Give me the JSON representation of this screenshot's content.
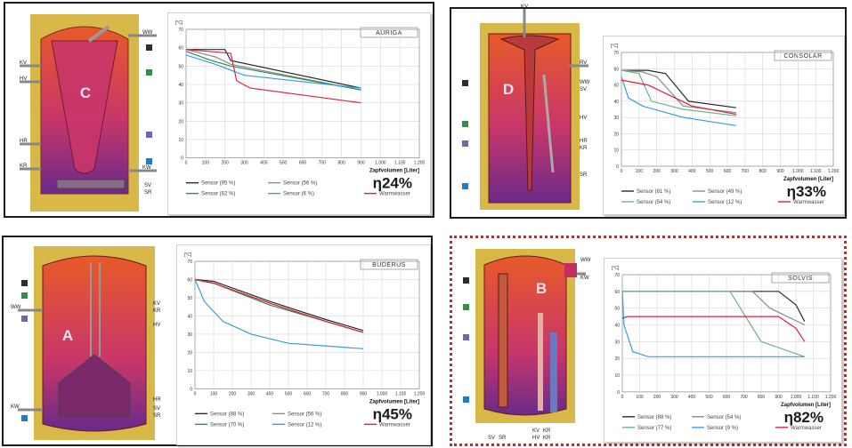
{
  "colors": {
    "dark": "#2a2a2a",
    "gray": "#8c8c8c",
    "green": "#2f8a5a",
    "blue": "#3a9fd6",
    "red": "#e0203a",
    "lightgreen": "#6ab58a"
  },
  "connector_icon_colors": {
    "dark": "#2d2d2d",
    "green": "#3a8a4a",
    "violet": "#6a6aa8",
    "blue": "#2a7ac0"
  },
  "tanks": {
    "c": {
      "letter": "C",
      "left_labels": [
        "KV",
        "HV",
        "HR",
        "KR"
      ],
      "right_labels": [
        "WW",
        "KW",
        "SV",
        "SR"
      ]
    },
    "d": {
      "letter": "D",
      "top_label": "KV",
      "right_labels": [
        "RV",
        "WW",
        "SV",
        "HV",
        "HR",
        "KR",
        "SR"
      ]
    },
    "a": {
      "letter": "A",
      "left_labels": [
        "WW",
        "KW"
      ],
      "right_labels": [
        "KV",
        "KR",
        "HV",
        "HR",
        "SV",
        "SR"
      ]
    },
    "b": {
      "letter": "B",
      "right_labels": [
        "WW",
        "KW"
      ],
      "bottom_labels": [
        "SV",
        "SR",
        "KV",
        "HV",
        "KR",
        "KR"
      ]
    }
  },
  "axes": {
    "unit": "[°C]",
    "xlabel": "Zapfvolumen  [Liter]",
    "y_ticks": [
      "70",
      "60",
      "50",
      "40",
      "30",
      "20",
      "10",
      "0"
    ],
    "x_ticks": [
      "0",
      "100",
      "200",
      "300",
      "400",
      "500",
      "600",
      "700",
      "800",
      "900",
      "1.000",
      "1.100",
      "1.200"
    ]
  },
  "chart_data": [
    {
      "type": "line",
      "title": "AURIGA",
      "efficiency": "η24%",
      "ylim": [
        0,
        70
      ],
      "xlim": [
        0,
        1200
      ],
      "ylabel": "[°C]",
      "xlabel": "Zapfvolumen  [Liter]",
      "series": [
        {
          "name": "Sensor (95 %)",
          "color": "dark",
          "x": [
            0,
            200,
            230,
            900
          ],
          "y": [
            59,
            59,
            53,
            38
          ]
        },
        {
          "name": "Sensor (56 %)",
          "color": "gray",
          "x": [
            0,
            150,
            230,
            900
          ],
          "y": [
            59,
            55,
            51,
            37
          ]
        },
        {
          "name": "Sensor (62 %)",
          "color": "green",
          "x": [
            0,
            130,
            230,
            900
          ],
          "y": [
            58,
            53,
            50,
            37
          ]
        },
        {
          "name": "Sensor (6 %)",
          "color": "blue",
          "x": [
            0,
            150,
            300,
            900
          ],
          "y": [
            56,
            51,
            45,
            38
          ]
        },
        {
          "name": "Warmwasser",
          "color": "red",
          "x": [
            0,
            230,
            260,
            330,
            900
          ],
          "y": [
            59,
            57,
            42,
            38,
            30
          ]
        }
      ],
      "legend": [
        "Sensor (95 %)",
        "Sensor (56 %)",
        "Sensor (62 %)",
        "Sensor (6 %)",
        "Warmwasser"
      ]
    },
    {
      "type": "line",
      "title": "CONSOLAR",
      "efficiency": "η33%",
      "ylim": [
        0,
        70
      ],
      "xlim": [
        0,
        1200
      ],
      "ylabel": "[°C]",
      "xlabel": "Zapfvolumen  [Liter]",
      "series": [
        {
          "name": "Sensor (81 %)",
          "color": "dark",
          "x": [
            0,
            150,
            250,
            380,
            650
          ],
          "y": [
            59,
            59,
            57,
            40,
            36
          ]
        },
        {
          "name": "Sensor (49 %)",
          "color": "gray",
          "x": [
            0,
            120,
            200,
            350,
            650
          ],
          "y": [
            59,
            58,
            55,
            37,
            33
          ]
        },
        {
          "name": "Sensor (54 %)",
          "color": "lightgreen",
          "x": [
            0,
            100,
            170,
            350,
            650
          ],
          "y": [
            59,
            57,
            40,
            35,
            31
          ]
        },
        {
          "name": "Sensor (12 %)",
          "color": "blue",
          "x": [
            0,
            40,
            120,
            350,
            650
          ],
          "y": [
            55,
            42,
            37,
            30,
            25
          ]
        },
        {
          "name": "Warmwasser",
          "color": "red",
          "x": [
            0,
            150,
            400,
            650
          ],
          "y": [
            53,
            50,
            37,
            32
          ]
        }
      ],
      "legend": [
        "Sensor (81 %)",
        "Sensor (49 %)",
        "Sensor (54 %)",
        "Sensor (12 %)",
        "Warmwasser"
      ]
    },
    {
      "type": "line",
      "title": "BUDERUS",
      "efficiency": "η45%",
      "ylim": [
        0,
        70
      ],
      "xlim": [
        0,
        1200
      ],
      "ylabel": "[°C]",
      "xlabel": "Zapfvolumen  [Liter]",
      "series": [
        {
          "name": "Sensor (88 %)",
          "color": "dark",
          "x": [
            0,
            100,
            400,
            700,
            900
          ],
          "y": [
            60,
            59,
            48,
            38,
            32
          ]
        },
        {
          "name": "Sensor (56 %)",
          "color": "gray",
          "x": [
            0,
            100,
            400,
            700,
            900
          ],
          "y": [
            60,
            58,
            47,
            37,
            31
          ]
        },
        {
          "name": "Sensor (70 %)",
          "color": "green",
          "x": [
            0,
            100,
            400,
            700,
            900
          ],
          "y": [
            60,
            58,
            46,
            37,
            31
          ]
        },
        {
          "name": "Sensor (12 %)",
          "color": "blue",
          "x": [
            0,
            50,
            150,
            300,
            500,
            900
          ],
          "y": [
            60,
            48,
            37,
            30,
            25,
            22
          ]
        },
        {
          "name": "Warmwasser",
          "color": "red",
          "x": [
            0,
            100,
            400,
            700,
            900
          ],
          "y": [
            60,
            58,
            47,
            37,
            31
          ]
        }
      ],
      "legend": [
        "Sensor (88 %)",
        "Sensor (56 %)",
        "Sensor (70 %)",
        "Sensor (12 %)",
        "Warmwasser"
      ]
    },
    {
      "type": "line",
      "title": "SOLVIS",
      "efficiency": "η82%",
      "ylim": [
        0,
        70
      ],
      "xlim": [
        0,
        1200
      ],
      "ylabel": "[°C]",
      "xlabel": "Zapfvolumen  [Liter]",
      "series": [
        {
          "name": "Sensor (88 %)",
          "color": "dark",
          "x": [
            0,
            900,
            1000,
            1050
          ],
          "y": [
            60,
            60,
            52,
            42
          ]
        },
        {
          "name": "Sensor (54 %)",
          "color": "gray",
          "x": [
            0,
            750,
            850,
            1050
          ],
          "y": [
            60,
            60,
            50,
            40
          ]
        },
        {
          "name": "Sensor (77 %)",
          "color": "lightgreen",
          "x": [
            0,
            620,
            740,
            800,
            1050
          ],
          "y": [
            60,
            60,
            40,
            30,
            21
          ]
        },
        {
          "name": "Sensor (9 %)",
          "color": "blue",
          "x": [
            0,
            10,
            60,
            150,
            1050
          ],
          "y": [
            60,
            40,
            24,
            21,
            21
          ]
        },
        {
          "name": "Warmwasser",
          "color": "red",
          "x": [
            0,
            30,
            900,
            1000,
            1050
          ],
          "y": [
            44,
            45,
            45,
            38,
            30
          ]
        }
      ],
      "legend": [
        "Sensor (88 %)",
        "Sensor (54 %)",
        "Sensor (77 %)",
        "Sensor (9 %)",
        "Warmwasser"
      ]
    }
  ]
}
